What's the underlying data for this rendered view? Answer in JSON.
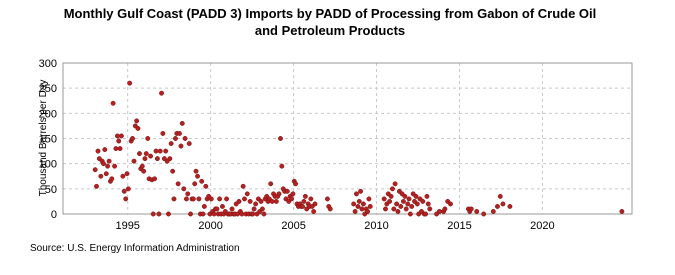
{
  "chart_data": {
    "type": "scatter",
    "title": "Monthly Gulf Coast (PADD 3) Imports by PADD of Processing from Gabon of Crude Oil and Petroleum Products",
    "ylabel": "Thousand Barrels per Day",
    "source": "Source: U.S. Energy Information Administration",
    "color": "#b22222",
    "grid": true,
    "xlim": [
      1991.1,
      2025.4
    ],
    "ylim": [
      0,
      300
    ],
    "xticks": [
      1995,
      2000,
      2005,
      2010,
      2015,
      2020
    ],
    "yticks": [
      0,
      50,
      100,
      150,
      200,
      250,
      300
    ],
    "x": [
      1993.04,
      1993.12,
      1993.21,
      1993.29,
      1993.38,
      1993.46,
      1993.54,
      1993.62,
      1993.71,
      1993.79,
      1993.88,
      1993.96,
      1994.04,
      1994.12,
      1994.21,
      1994.29,
      1994.38,
      1994.46,
      1994.54,
      1994.62,
      1994.71,
      1994.79,
      1994.88,
      1994.96,
      1995.04,
      1995.12,
      1995.21,
      1995.29,
      1995.38,
      1995.46,
      1995.54,
      1995.62,
      1995.71,
      1995.79,
      1995.88,
      1995.96,
      1996.04,
      1996.12,
      1996.21,
      1996.29,
      1996.38,
      1996.46,
      1996.54,
      1996.62,
      1996.71,
      1996.79,
      1996.88,
      1996.96,
      1997.04,
      1997.12,
      1997.21,
      1997.29,
      1997.38,
      1997.46,
      1997.54,
      1997.62,
      1997.71,
      1997.79,
      1997.88,
      1997.96,
      1998.04,
      1998.12,
      1998.21,
      1998.29,
      1998.38,
      1998.46,
      1998.54,
      1998.62,
      1998.71,
      1998.79,
      1998.88,
      1998.96,
      1999.04,
      1999.12,
      1999.21,
      1999.29,
      1999.38,
      1999.46,
      1999.54,
      1999.62,
      1999.71,
      1999.79,
      1999.88,
      1999.96,
      2000.04,
      2000.12,
      2000.21,
      2000.29,
      2000.38,
      2000.46,
      2000.54,
      2000.62,
      2000.71,
      2000.79,
      2000.88,
      2000.96,
      2001.04,
      2001.12,
      2001.21,
      2001.29,
      2001.38,
      2001.46,
      2001.54,
      2001.62,
      2001.71,
      2001.79,
      2001.88,
      2001.96,
      2002.04,
      2002.12,
      2002.21,
      2002.29,
      2002.38,
      2002.46,
      2002.54,
      2002.62,
      2002.71,
      2002.79,
      2002.88,
      2002.96,
      2003.04,
      2003.12,
      2003.21,
      2003.29,
      2003.38,
      2003.46,
      2003.54,
      2003.62,
      2003.71,
      2003.79,
      2003.88,
      2003.96,
      2004.04,
      2004.12,
      2004.21,
      2004.29,
      2004.38,
      2004.46,
      2004.54,
      2004.62,
      2004.71,
      2004.79,
      2004.88,
      2004.96,
      2005.04,
      2005.12,
      2005.21,
      2005.29,
      2005.38,
      2005.46,
      2005.54,
      2005.62,
      2005.71,
      2005.79,
      2005.88,
      2005.96,
      2006.04,
      2006.12,
      2006.21,
      2006.29,
      2007.04,
      2007.12,
      2007.21,
      2008.62,
      2008.71,
      2008.79,
      2008.88,
      2008.96,
      2009.04,
      2009.12,
      2009.21,
      2009.29,
      2009.38,
      2009.46,
      2009.54,
      2009.62,
      2010.46,
      2010.54,
      2010.62,
      2010.71,
      2010.79,
      2010.88,
      2010.96,
      2011.04,
      2011.12,
      2011.21,
      2011.29,
      2011.38,
      2011.46,
      2011.54,
      2011.62,
      2011.71,
      2011.79,
      2011.88,
      2011.96,
      2012.04,
      2012.12,
      2012.21,
      2012.29,
      2012.38,
      2012.46,
      2012.54,
      2012.62,
      2012.71,
      2012.79,
      2012.88,
      2012.96,
      2013.04,
      2013.12,
      2013.21,
      2013.62,
      2013.79,
      2014.04,
      2014.12,
      2014.29,
      2014.46,
      2015.54,
      2015.62,
      2015.71,
      2016.04,
      2016.46,
      2017.04,
      2017.29,
      2017.46,
      2017.62,
      2018.04,
      2024.79
    ],
    "values": [
      88,
      55,
      125,
      110,
      75,
      105,
      100,
      128,
      80,
      95,
      105,
      65,
      70,
      220,
      95,
      130,
      155,
      145,
      130,
      155,
      75,
      45,
      30,
      80,
      50,
      260,
      145,
      150,
      105,
      175,
      185,
      170,
      120,
      90,
      95,
      85,
      110,
      120,
      150,
      70,
      115,
      68,
      0,
      70,
      125,
      110,
      0,
      125,
      240,
      160,
      110,
      125,
      105,
      0,
      110,
      140,
      85,
      30,
      150,
      160,
      60,
      160,
      135,
      180,
      50,
      150,
      30,
      40,
      140,
      0,
      30,
      30,
      60,
      85,
      75,
      30,
      0,
      65,
      0,
      15,
      55,
      30,
      35,
      0,
      30,
      5,
      0,
      10,
      10,
      0,
      30,
      0,
      15,
      0,
      5,
      30,
      0,
      0,
      0,
      10,
      0,
      0,
      20,
      0,
      25,
      5,
      0,
      55,
      30,
      0,
      40,
      0,
      25,
      0,
      0,
      10,
      20,
      0,
      30,
      5,
      25,
      10,
      0,
      30,
      35,
      25,
      30,
      60,
      25,
      40,
      35,
      25,
      35,
      40,
      150,
      95,
      50,
      45,
      30,
      45,
      25,
      35,
      30,
      40,
      65,
      60,
      20,
      15,
      20,
      15,
      15,
      25,
      35,
      10,
      20,
      15,
      30,
      15,
      5,
      20,
      30,
      15,
      10,
      20,
      5,
      40,
      15,
      25,
      45,
      10,
      20,
      0,
      10,
      5,
      30,
      15,
      30,
      10,
      20,
      40,
      25,
      35,
      50,
      10,
      60,
      20,
      5,
      45,
      15,
      40,
      25,
      35,
      10,
      20,
      30,
      0,
      15,
      40,
      25,
      35,
      20,
      0,
      30,
      5,
      25,
      0,
      0,
      35,
      20,
      10,
      0,
      5,
      5,
      10,
      25,
      20,
      10,
      5,
      10,
      5,
      0,
      5,
      15,
      35,
      20,
      15,
      5
    ]
  }
}
